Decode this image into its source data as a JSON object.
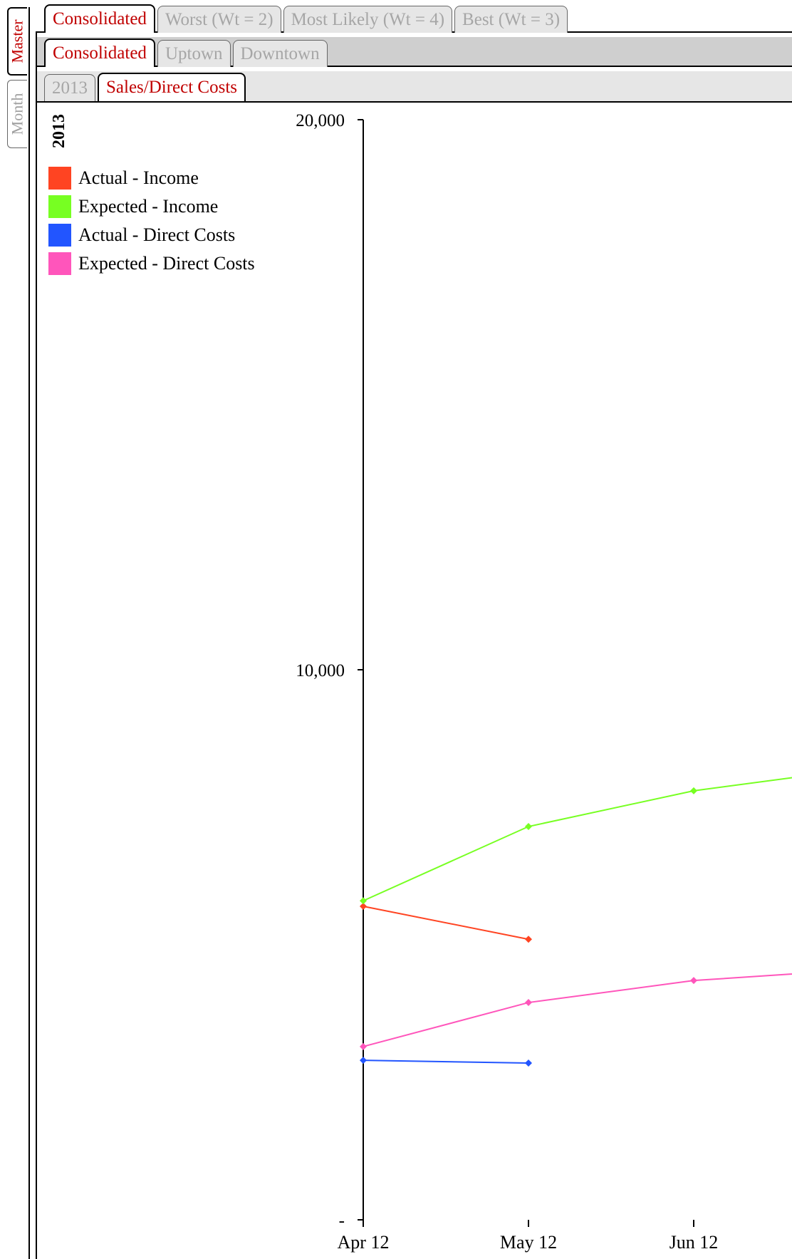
{
  "vertical_tabs": [
    {
      "label": "Master",
      "active": true
    },
    {
      "label": "Month",
      "active": false
    }
  ],
  "scenario_tabs": [
    {
      "label": "Consolidated",
      "active": true
    },
    {
      "label": "Worst (Wt = 2)",
      "active": false
    },
    {
      "label": "Most Likely (Wt = 4)",
      "active": false
    },
    {
      "label": "Best (Wt = 3)",
      "active": false
    }
  ],
  "location_tabs": [
    {
      "label": "Consolidated",
      "active": true
    },
    {
      "label": "Uptown",
      "active": false
    },
    {
      "label": "Downtown",
      "active": false
    }
  ],
  "view_tabs": [
    {
      "label": "2013",
      "active": false
    },
    {
      "label": "Sales/Direct Costs",
      "active": true
    }
  ],
  "colors": {
    "active_tab_text": "#c00000",
    "inactive_tab_text": "#a6a6a6"
  },
  "chart_data": {
    "type": "line",
    "legend_title": "2013",
    "legend_placement": "top-left",
    "categories": [
      "Apr 12",
      "May 12",
      "Jun 12"
    ],
    "y_tick_labels": [
      "-",
      "10,000",
      "20,000"
    ],
    "y_ticks": [
      0,
      10000,
      20000
    ],
    "ylim": [
      0,
      20000
    ],
    "grid": false,
    "series": [
      {
        "name": "Actual - Income",
        "color": "#ff4422",
        "values": [
          5700,
          5100,
          null
        ]
      },
      {
        "name": "Expected - Income",
        "color": "#77ff22",
        "values": [
          5800,
          7150,
          7800
        ]
      },
      {
        "name": "Actual - Direct Costs",
        "color": "#2255ff",
        "values": [
          2900,
          2850,
          null
        ]
      },
      {
        "name": "Expected - Direct Costs",
        "color": "#ff55bb",
        "values": [
          3150,
          3950,
          4350
        ]
      }
    ],
    "trailing_values": {
      "Expected - Income": 8200,
      "Expected - Direct Costs": 4550
    }
  }
}
